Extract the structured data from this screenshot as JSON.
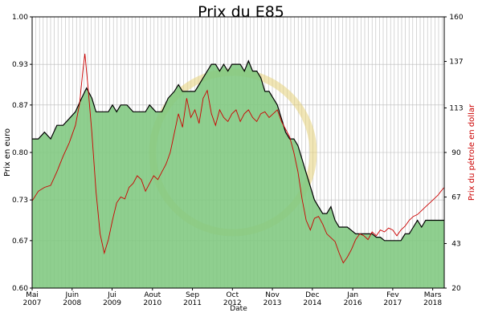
{
  "chart_data": {
    "type": "area",
    "title": "Prix du E85",
    "xlabel": "Date",
    "ylabel_left": "Prix en euro",
    "ylabel_right": "Prix du pétrole en dollar",
    "y_left": {
      "range": [
        0.6,
        1.0
      ],
      "ticks": [
        "0.60",
        "0.67",
        "0.73",
        "0.80",
        "0.87",
        "0.93",
        "1.00"
      ]
    },
    "y_right": {
      "range": [
        20,
        160
      ],
      "ticks": [
        "20",
        "43",
        "67",
        "90",
        "113",
        "137",
        "160"
      ]
    },
    "x_range": [
      0,
      100
    ],
    "x_ticks": [
      {
        "pos": 0,
        "line1": "Mai",
        "line2": "2007"
      },
      {
        "pos": 9.7,
        "line1": "Juin",
        "line2": "2008"
      },
      {
        "pos": 19.4,
        "line1": "Jui",
        "line2": "2009"
      },
      {
        "pos": 29.2,
        "line1": "Aout",
        "line2": "2010"
      },
      {
        "pos": 38.9,
        "line1": "Sep",
        "line2": "2011"
      },
      {
        "pos": 48.6,
        "line1": "Oct",
        "line2": "2012"
      },
      {
        "pos": 58.3,
        "line1": "Nov",
        "line2": "2013"
      },
      {
        "pos": 68.0,
        "line1": "Dec",
        "line2": "2014"
      },
      {
        "pos": 77.8,
        "line1": "Jan",
        "line2": "2016"
      },
      {
        "pos": 87.5,
        "line1": "Fev",
        "line2": "2017"
      },
      {
        "pos": 97.2,
        "line1": "Mars",
        "line2": "2018"
      }
    ],
    "grid": true,
    "colors": {
      "fill": "#80c880",
      "stroke": "#000000",
      "oil": "#cc0000",
      "grid": "#bbbbbb"
    },
    "series": [
      {
        "axis": "left",
        "points": [
          [
            0,
            0.82
          ],
          [
            1.5,
            0.82
          ],
          [
            3,
            0.83
          ],
          [
            4.5,
            0.82
          ],
          [
            6,
            0.84
          ],
          [
            7.5,
            0.84
          ],
          [
            9,
            0.85
          ],
          [
            10.5,
            0.86
          ],
          [
            12,
            0.88
          ],
          [
            13.2,
            0.895
          ],
          [
            14.5,
            0.88
          ],
          [
            15.5,
            0.86
          ],
          [
            17,
            0.86
          ],
          [
            18.5,
            0.86
          ],
          [
            19.5,
            0.87
          ],
          [
            20.5,
            0.86
          ],
          [
            21.5,
            0.87
          ],
          [
            23,
            0.87
          ],
          [
            24.5,
            0.86
          ],
          [
            26,
            0.86
          ],
          [
            27.5,
            0.86
          ],
          [
            28.5,
            0.87
          ],
          [
            30,
            0.86
          ],
          [
            31.5,
            0.86
          ],
          [
            33,
            0.88
          ],
          [
            34.5,
            0.89
          ],
          [
            35.5,
            0.9
          ],
          [
            36.5,
            0.89
          ],
          [
            38,
            0.89
          ],
          [
            39.5,
            0.89
          ],
          [
            40.5,
            0.9
          ],
          [
            41.5,
            0.91
          ],
          [
            42.5,
            0.92
          ],
          [
            43.5,
            0.93
          ],
          [
            44.5,
            0.93
          ],
          [
            45.5,
            0.92
          ],
          [
            46.5,
            0.93
          ],
          [
            47.5,
            0.92
          ],
          [
            48.5,
            0.93
          ],
          [
            49.5,
            0.93
          ],
          [
            50.5,
            0.93
          ],
          [
            51.5,
            0.92
          ],
          [
            52.5,
            0.935
          ],
          [
            53.5,
            0.92
          ],
          [
            54.5,
            0.92
          ],
          [
            55.5,
            0.91
          ],
          [
            56.5,
            0.89
          ],
          [
            57.5,
            0.89
          ],
          [
            58.5,
            0.88
          ],
          [
            59.5,
            0.87
          ],
          [
            60.5,
            0.85
          ],
          [
            61.5,
            0.83
          ],
          [
            62.5,
            0.82
          ],
          [
            63.5,
            0.82
          ],
          [
            64.5,
            0.81
          ],
          [
            65.5,
            0.79
          ],
          [
            66.5,
            0.77
          ],
          [
            67.5,
            0.75
          ],
          [
            68.5,
            0.73
          ],
          [
            69.5,
            0.72
          ],
          [
            70.5,
            0.71
          ],
          [
            71.5,
            0.71
          ],
          [
            72.5,
            0.72
          ],
          [
            73.5,
            0.7
          ],
          [
            74.5,
            0.69
          ],
          [
            75.5,
            0.69
          ],
          [
            76.5,
            0.69
          ],
          [
            77.5,
            0.685
          ],
          [
            78.5,
            0.68
          ],
          [
            79.5,
            0.68
          ],
          [
            80.5,
            0.68
          ],
          [
            81.5,
            0.68
          ],
          [
            82.5,
            0.68
          ],
          [
            83.5,
            0.675
          ],
          [
            84.5,
            0.675
          ],
          [
            85.5,
            0.67
          ],
          [
            86.5,
            0.67
          ],
          [
            87.5,
            0.67
          ],
          [
            88.5,
            0.67
          ],
          [
            89.5,
            0.67
          ],
          [
            90.5,
            0.68
          ],
          [
            91.5,
            0.68
          ],
          [
            92.5,
            0.69
          ],
          [
            93.5,
            0.7
          ],
          [
            94.5,
            0.69
          ],
          [
            95.5,
            0.7
          ],
          [
            96.5,
            0.7
          ],
          [
            97.5,
            0.7
          ],
          [
            98.5,
            0.7
          ],
          [
            99.2,
            0.7
          ],
          [
            100,
            0.7
          ]
        ]
      },
      {
        "axis": "right",
        "points": [
          [
            0,
            65
          ],
          [
            1.5,
            70
          ],
          [
            3,
            72
          ],
          [
            4.5,
            73
          ],
          [
            6,
            80
          ],
          [
            7.5,
            88
          ],
          [
            9,
            95
          ],
          [
            10.5,
            104
          ],
          [
            11.5,
            115
          ],
          [
            12.3,
            132
          ],
          [
            12.8,
            141
          ],
          [
            13.5,
            125
          ],
          [
            14.5,
            100
          ],
          [
            15.5,
            70
          ],
          [
            16.5,
            48
          ],
          [
            17.5,
            38
          ],
          [
            18.5,
            45
          ],
          [
            19.5,
            55
          ],
          [
            20.5,
            64
          ],
          [
            21.5,
            67
          ],
          [
            22.5,
            66
          ],
          [
            23.5,
            72
          ],
          [
            24.5,
            74
          ],
          [
            25.5,
            78
          ],
          [
            26.5,
            76
          ],
          [
            27.5,
            70
          ],
          [
            28.5,
            74
          ],
          [
            29.5,
            78
          ],
          [
            30.5,
            76
          ],
          [
            31.5,
            80
          ],
          [
            32.5,
            84
          ],
          [
            33.5,
            90
          ],
          [
            34.5,
            100
          ],
          [
            35.5,
            110
          ],
          [
            36.5,
            103
          ],
          [
            37.5,
            118
          ],
          [
            38.5,
            108
          ],
          [
            39.5,
            112
          ],
          [
            40.5,
            105
          ],
          [
            41.5,
            118
          ],
          [
            42.5,
            122
          ],
          [
            43.5,
            110
          ],
          [
            44.5,
            104
          ],
          [
            45.5,
            112
          ],
          [
            46.5,
            108
          ],
          [
            47.5,
            106
          ],
          [
            48.5,
            110
          ],
          [
            49.5,
            112
          ],
          [
            50.5,
            106
          ],
          [
            51.5,
            110
          ],
          [
            52.5,
            112
          ],
          [
            53.5,
            108
          ],
          [
            54.5,
            106
          ],
          [
            55.5,
            110
          ],
          [
            56.5,
            111
          ],
          [
            57.5,
            108
          ],
          [
            58.5,
            110
          ],
          [
            59.5,
            112
          ],
          [
            60.5,
            106
          ],
          [
            61.5,
            102
          ],
          [
            62.5,
            98
          ],
          [
            63.5,
            90
          ],
          [
            64.5,
            80
          ],
          [
            65.5,
            66
          ],
          [
            66.5,
            55
          ],
          [
            67.5,
            50
          ],
          [
            68.5,
            56
          ],
          [
            69.5,
            57
          ],
          [
            70.5,
            53
          ],
          [
            71.5,
            48
          ],
          [
            72.5,
            46
          ],
          [
            73.5,
            44
          ],
          [
            74.5,
            38
          ],
          [
            75.5,
            33
          ],
          [
            76.5,
            36
          ],
          [
            77.5,
            40
          ],
          [
            78.5,
            45
          ],
          [
            79.5,
            48
          ],
          [
            80.5,
            47
          ],
          [
            81.5,
            45
          ],
          [
            82.5,
            49
          ],
          [
            83.5,
            47
          ],
          [
            84.5,
            50
          ],
          [
            85.5,
            49
          ],
          [
            86.5,
            51
          ],
          [
            87.5,
            50
          ],
          [
            88.5,
            47
          ],
          [
            89.5,
            50
          ],
          [
            90.5,
            52
          ],
          [
            91.5,
            55
          ],
          [
            92.5,
            57
          ],
          [
            93.5,
            58
          ],
          [
            94.5,
            60
          ],
          [
            95.5,
            62
          ],
          [
            96.5,
            64
          ],
          [
            97.5,
            66
          ],
          [
            98.5,
            68
          ],
          [
            99.2,
            70
          ],
          [
            100,
            72
          ]
        ]
      }
    ]
  }
}
